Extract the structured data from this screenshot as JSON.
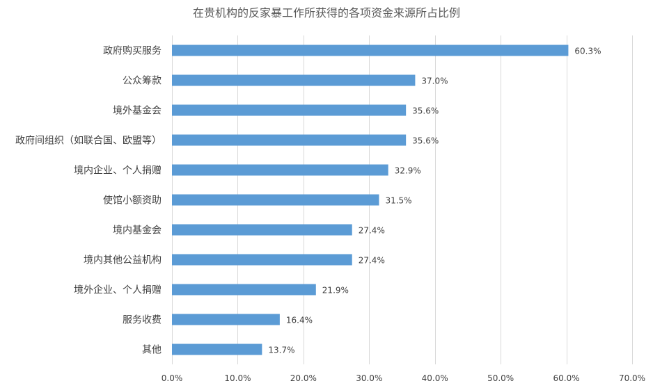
{
  "chart_data": {
    "type": "bar",
    "orientation": "horizontal",
    "title": "在贵机构的反家暴工作所获得的各项资金来源所占比例",
    "categories": [
      "政府购买服务",
      "公众筹款",
      "境外基金会",
      "政府间组织（如联合国、欧盟等）",
      "境内企业、个人捐赠",
      "使馆小额资助",
      "境内基金会",
      "境内其他公益机构",
      "境外企业、个人捐赠",
      "服务收费",
      "其他"
    ],
    "values": [
      60.3,
      37.0,
      35.6,
      35.6,
      32.9,
      31.5,
      27.4,
      27.4,
      21.9,
      16.4,
      13.7
    ],
    "value_labels": [
      "60.3%",
      "37.0%",
      "35.6%",
      "35.6%",
      "32.9%",
      "31.5%",
      "27.4%",
      "27.4%",
      "21.9%",
      "16.4%",
      "13.7%"
    ],
    "xlim": [
      0,
      70
    ],
    "xticks": [
      0,
      10,
      20,
      30,
      40,
      50,
      60,
      70
    ],
    "xtick_labels": [
      "0.0%",
      "10.0%",
      "20.0%",
      "30.0%",
      "40.0%",
      "50.0%",
      "60.0%",
      "70.0%"
    ],
    "xlabel": "",
    "ylabel": "",
    "grid": "vertical",
    "legend": "none",
    "bar_color": "#5b9bd5"
  }
}
